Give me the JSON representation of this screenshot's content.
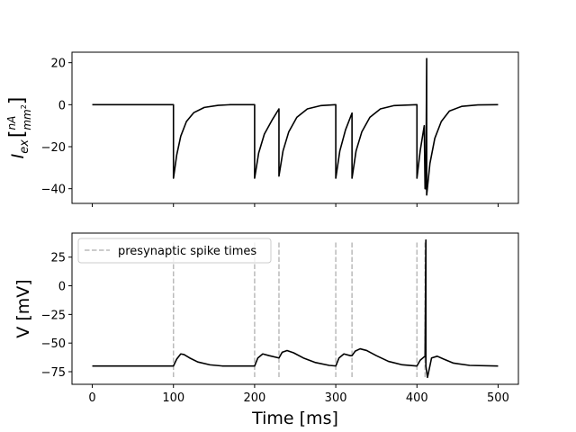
{
  "chart_data": [
    {
      "type": "line",
      "ylabel_main": "I",
      "ylabel_sub": "ex",
      "ylabel_unit_num": "nA",
      "ylabel_unit_den": "mm",
      "ylabel_unit_exp": "2",
      "xlim": [
        -25,
        525
      ],
      "ylim": [
        -47,
        25
      ],
      "xticks": [
        0,
        100,
        200,
        300,
        400,
        500
      ],
      "yticks": [
        20,
        0,
        -20,
        -40
      ],
      "ytick_labels": [
        "20",
        "0",
        "−20",
        "−40"
      ],
      "series": [
        {
          "name": "I_ex",
          "color": "#000000",
          "points": [
            [
              0,
              0
            ],
            [
              100,
              0
            ],
            [
              100,
              -35
            ],
            [
              104,
              -24
            ],
            [
              109,
              -15
            ],
            [
              116,
              -8
            ],
            [
              125,
              -3.8
            ],
            [
              138,
              -1.3
            ],
            [
              155,
              -0.3
            ],
            [
              170,
              0
            ],
            [
              200,
              0
            ],
            [
              200,
              -35
            ],
            [
              205,
              -23
            ],
            [
              212,
              -14
            ],
            [
              222,
              -7
            ],
            [
              230,
              -2
            ],
            [
              230,
              -34
            ],
            [
              235,
              -22
            ],
            [
              242,
              -13
            ],
            [
              252,
              -6
            ],
            [
              265,
              -2
            ],
            [
              282,
              -0.4
            ],
            [
              300,
              0
            ],
            [
              300,
              -35
            ],
            [
              305,
              -22
            ],
            [
              312,
              -12
            ],
            [
              320,
              -4
            ],
            [
              320,
              -35
            ],
            [
              325,
              -22
            ],
            [
              332,
              -13
            ],
            [
              342,
              -6
            ],
            [
              355,
              -2
            ],
            [
              372,
              -0.4
            ],
            [
              400,
              0
            ],
            [
              400,
              -35
            ],
            [
              404,
              -22
            ],
            [
              409,
              -10
            ],
            [
              410,
              -40
            ],
            [
              411,
              -40
            ],
            [
              412,
              22
            ],
            [
              412,
              -43
            ],
            [
              416,
              -28
            ],
            [
              422,
              -16
            ],
            [
              430,
              -8
            ],
            [
              440,
              -3
            ],
            [
              455,
              -0.8
            ],
            [
              475,
              -0.1
            ],
            [
              500,
              0
            ]
          ]
        }
      ]
    },
    {
      "type": "line",
      "xlabel": "Time [ms]",
      "ylabel": "V [mV]",
      "xlim": [
        -25,
        525
      ],
      "ylim": [
        -86,
        46
      ],
      "xticks": [
        0,
        100,
        200,
        300,
        400,
        500
      ],
      "xtick_labels": [
        "0",
        "100",
        "200",
        "300",
        "400",
        "500"
      ],
      "yticks": [
        25,
        0,
        -25,
        -50,
        -75
      ],
      "ytick_labels": [
        "25",
        "0",
        "−25",
        "−50",
        "−75"
      ],
      "legend": {
        "label": "presynaptic spike times",
        "placement": "top-left"
      },
      "spike_times": [
        100,
        200,
        230,
        300,
        320,
        400,
        410
      ],
      "spike_color": "#bbbbbb",
      "series": [
        {
          "name": "V",
          "color": "#000000",
          "points": [
            [
              0,
              -70
            ],
            [
              100,
              -70
            ],
            [
              104,
              -64
            ],
            [
              109,
              -59.5
            ],
            [
              113,
              -60
            ],
            [
              120,
              -63
            ],
            [
              130,
              -66.5
            ],
            [
              145,
              -69
            ],
            [
              160,
              -70
            ],
            [
              200,
              -70
            ],
            [
              204,
              -63
            ],
            [
              210,
              -59.5
            ],
            [
              218,
              -61
            ],
            [
              230,
              -63
            ],
            [
              234,
              -58
            ],
            [
              240,
              -56.5
            ],
            [
              248,
              -58.5
            ],
            [
              260,
              -63
            ],
            [
              275,
              -67
            ],
            [
              292,
              -69.5
            ],
            [
              300,
              -70
            ],
            [
              304,
              -63
            ],
            [
              310,
              -59.5
            ],
            [
              318,
              -61
            ],
            [
              320,
              -61
            ],
            [
              324,
              -57
            ],
            [
              330,
              -55
            ],
            [
              338,
              -56.5
            ],
            [
              350,
              -61
            ],
            [
              365,
              -66
            ],
            [
              382,
              -69
            ],
            [
              400,
              -70
            ],
            [
              404,
              -65
            ],
            [
              409,
              -62
            ],
            [
              410,
              -62
            ],
            [
              411,
              40
            ],
            [
              411,
              -70
            ],
            [
              413,
              -80
            ],
            [
              418,
              -63
            ],
            [
              425,
              -61.5
            ],
            [
              433,
              -64
            ],
            [
              445,
              -67.5
            ],
            [
              465,
              -69.5
            ],
            [
              500,
              -70
            ]
          ]
        }
      ]
    }
  ]
}
